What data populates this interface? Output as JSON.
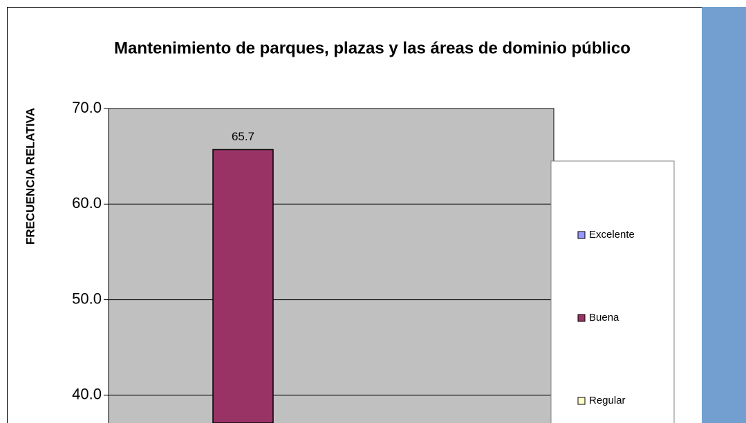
{
  "chart_data": {
    "type": "bar",
    "title": "Mantenimiento de parques, plazas y las áreas de dominio público",
    "y_label": "FRECUENCIA RELATIVA",
    "series": [
      {
        "name": "Excelente",
        "color": "#9999ff",
        "values": [
          null
        ]
      },
      {
        "name": "Buena",
        "color": "#993366",
        "values": [
          65.7
        ]
      },
      {
        "name": "Regular",
        "color": "#ffffcc",
        "values": [
          null
        ]
      }
    ],
    "value_labels": {
      "1": [
        "65.7"
      ]
    },
    "ylim": [
      37.1,
      70
    ],
    "yticks": [
      {
        "value": 40,
        "label": "40.0"
      },
      {
        "value": 50,
        "label": "50.0"
      },
      {
        "value": 60,
        "label": "60.0"
      },
      {
        "value": 70,
        "label": "70.0"
      }
    ],
    "grid": true,
    "legend": "right"
  }
}
